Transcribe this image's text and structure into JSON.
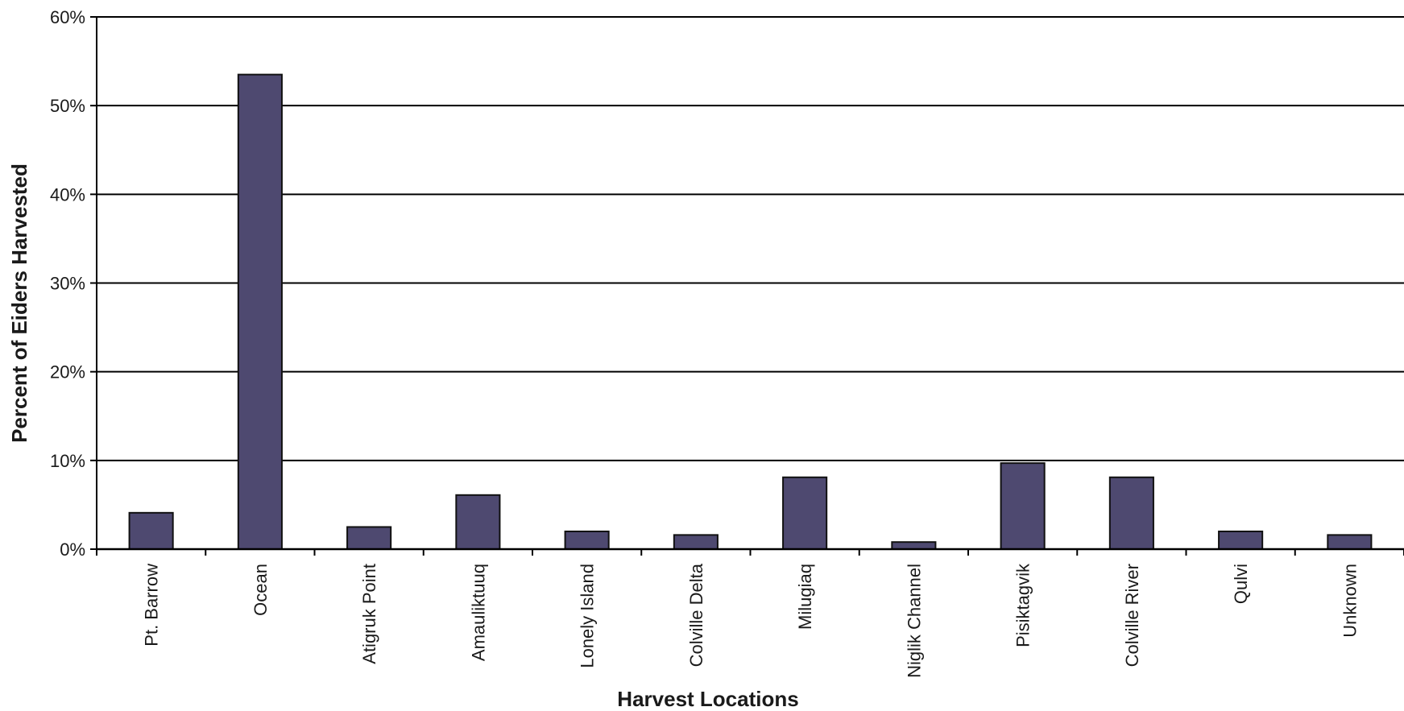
{
  "chart_data": {
    "type": "bar",
    "title": "",
    "xlabel": "Harvest Locations",
    "ylabel": "Percent of Eiders Harvested",
    "categories": [
      "Pt. Barrow",
      "Ocean",
      "Atigruk Point",
      "Amauliktuuq",
      "Lonely Island",
      "Colville Delta",
      "Milugiaq",
      "Niglik Channel",
      "Pisiktagvik",
      "Colville River",
      "Qulvi",
      "Unknown"
    ],
    "values": [
      4.1,
      53.5,
      2.5,
      6.1,
      2.0,
      1.6,
      8.1,
      0.8,
      9.7,
      8.1,
      2.0,
      1.6
    ],
    "ylim": [
      0,
      60
    ],
    "yticks": [
      "0%",
      "10%",
      "20%",
      "30%",
      "40%",
      "50%",
      "60%"
    ],
    "ytick_values": [
      0,
      10,
      20,
      30,
      40,
      50,
      60
    ],
    "grid": true,
    "legend": "none",
    "bar_color": "#4e4970",
    "bar_edge_color": "#111111"
  }
}
